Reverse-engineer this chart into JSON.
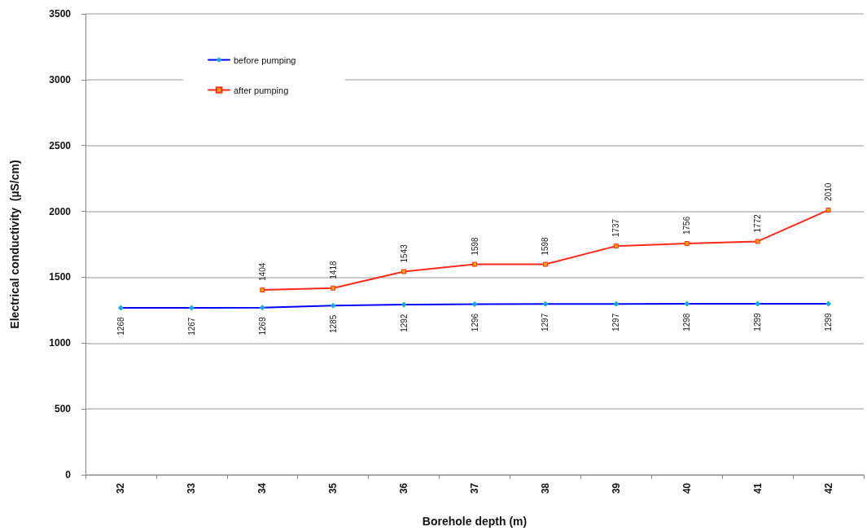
{
  "chart_data": {
    "type": "line",
    "xlabel": "Borehole depth (m)",
    "ylabel": "Electrical conductivity  (µS/cm)",
    "categories": [
      "32",
      "33",
      "34",
      "35",
      "36",
      "37",
      "38",
      "39",
      "40",
      "41",
      "42"
    ],
    "series": [
      {
        "name": "before pumping",
        "color": "#0000ff",
        "marker": "diamond",
        "values": [
          1268,
          1267,
          1269,
          1285,
          1292,
          1296,
          1297,
          1297,
          1298,
          1299,
          1299
        ]
      },
      {
        "name": "after pumping",
        "color": "#ff2a1a",
        "marker": "square",
        "values": [
          null,
          null,
          1404,
          1418,
          1543,
          1598,
          1598,
          1737,
          1756,
          1772,
          2010
        ]
      }
    ],
    "ylim": [
      0,
      3500
    ],
    "yticks": [
      0,
      500,
      1000,
      1500,
      2000,
      2500,
      3000,
      3500
    ],
    "grid": "y",
    "legend": "top left",
    "data_labels": true,
    "line_style": "solid"
  }
}
